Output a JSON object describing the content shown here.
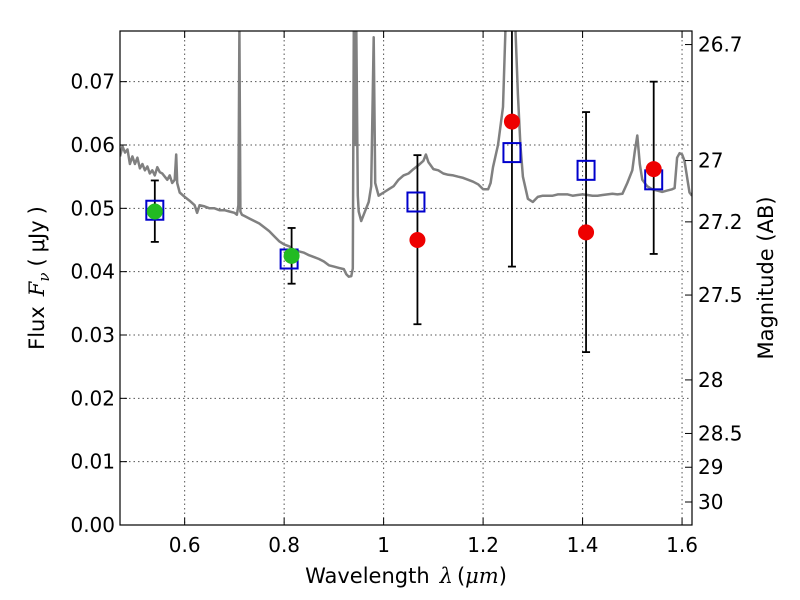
{
  "chart_data": {
    "type": "scatter",
    "title": "",
    "xlabel": "Wavelength",
    "xlabel_symbol": "λ",
    "xlabel_unit": "μm",
    "ylabel": "Flux",
    "ylabel_symbol": "F",
    "ylabel_symbol_sub": "ν",
    "ylabel_unit": "μJy",
    "y2label": "Magnitude (AB)",
    "xlim": [
      0.47,
      1.62
    ],
    "ylim": [
      0.0,
      0.078
    ],
    "grid": true,
    "x_ticks": [
      {
        "value": 0.6,
        "label": "0.6"
      },
      {
        "value": 0.8,
        "label": "0.8"
      },
      {
        "value": 1.0,
        "label": "1"
      },
      {
        "value": 1.2,
        "label": "1.2"
      },
      {
        "value": 1.4,
        "label": "1.4"
      },
      {
        "value": 1.6,
        "label": "1.6"
      }
    ],
    "y_ticks": [
      {
        "value": 0.0,
        "label": "0.00"
      },
      {
        "value": 0.01,
        "label": "0.01"
      },
      {
        "value": 0.02,
        "label": "0.02"
      },
      {
        "value": 0.03,
        "label": "0.03"
      },
      {
        "value": 0.04,
        "label": "0.04"
      },
      {
        "value": 0.05,
        "label": "0.05"
      },
      {
        "value": 0.06,
        "label": "0.06"
      },
      {
        "value": 0.07,
        "label": "0.07"
      }
    ],
    "y2_ticks": [
      {
        "mag": 26.7,
        "label": "26.7"
      },
      {
        "mag": 27.0,
        "label": "27"
      },
      {
        "mag": 27.2,
        "label": "27.2"
      },
      {
        "mag": 27.5,
        "label": "27.5"
      },
      {
        "mag": 28.0,
        "label": "28"
      },
      {
        "mag": 28.5,
        "label": "28.5"
      },
      {
        "mag": 29.0,
        "label": "29"
      },
      {
        "mag": 30.0,
        "label": "30"
      }
    ],
    "colors": {
      "model": "#808080",
      "model_flux": "#0000cc",
      "optical": "#22bb22",
      "nir": "#ee0000",
      "errorbar": "#000000",
      "grid": "#555555"
    },
    "model_spectrum": [
      [
        0.47,
        0.0582
      ],
      [
        0.475,
        0.0598
      ],
      [
        0.48,
        0.0588
      ],
      [
        0.485,
        0.0593
      ],
      [
        0.49,
        0.057
      ],
      [
        0.495,
        0.0582
      ],
      [
        0.5,
        0.057
      ],
      [
        0.505,
        0.058
      ],
      [
        0.51,
        0.0563
      ],
      [
        0.515,
        0.057
      ],
      [
        0.52,
        0.056
      ],
      [
        0.525,
        0.0566
      ],
      [
        0.53,
        0.0555
      ],
      [
        0.535,
        0.056
      ],
      [
        0.54,
        0.0552
      ],
      [
        0.545,
        0.0565
      ],
      [
        0.55,
        0.0557
      ],
      [
        0.555,
        0.0555
      ],
      [
        0.56,
        0.055
      ],
      [
        0.565,
        0.0545
      ],
      [
        0.57,
        0.0552
      ],
      [
        0.575,
        0.054
      ],
      [
        0.58,
        0.0545
      ],
      [
        0.583,
        0.0585
      ],
      [
        0.585,
        0.054
      ],
      [
        0.59,
        0.0525
      ],
      [
        0.6,
        0.0518
      ],
      [
        0.61,
        0.0512
      ],
      [
        0.62,
        0.0505
      ],
      [
        0.625,
        0.0493
      ],
      [
        0.63,
        0.0505
      ],
      [
        0.64,
        0.0503
      ],
      [
        0.65,
        0.05
      ],
      [
        0.66,
        0.05
      ],
      [
        0.67,
        0.0497
      ],
      [
        0.68,
        0.0497
      ],
      [
        0.69,
        0.0495
      ],
      [
        0.7,
        0.0493
      ],
      [
        0.705,
        0.049
      ],
      [
        0.708,
        0.0505
      ],
      [
        0.71,
        0.0785
      ],
      [
        0.712,
        0.0495
      ],
      [
        0.715,
        0.049
      ],
      [
        0.72,
        0.0488
      ],
      [
        0.73,
        0.0484
      ],
      [
        0.74,
        0.048
      ],
      [
        0.75,
        0.0476
      ],
      [
        0.76,
        0.047
      ],
      [
        0.77,
        0.0464
      ],
      [
        0.78,
        0.0456
      ],
      [
        0.79,
        0.0448
      ],
      [
        0.8,
        0.0443
      ],
      [
        0.81,
        0.044
      ],
      [
        0.82,
        0.0434
      ],
      [
        0.83,
        0.0432
      ],
      [
        0.84,
        0.043
      ],
      [
        0.85,
        0.0426
      ],
      [
        0.86,
        0.0423
      ],
      [
        0.87,
        0.042
      ],
      [
        0.88,
        0.0416
      ],
      [
        0.89,
        0.041
      ],
      [
        0.9,
        0.0408
      ],
      [
        0.91,
        0.0406
      ],
      [
        0.92,
        0.0404
      ],
      [
        0.925,
        0.0396
      ],
      [
        0.93,
        0.0392
      ],
      [
        0.935,
        0.0393
      ],
      [
        0.938,
        0.0405
      ],
      [
        0.94,
        0.0785
      ],
      [
        0.943,
        0.06
      ],
      [
        0.945,
        0.0785
      ],
      [
        0.948,
        0.052
      ],
      [
        0.95,
        0.0495
      ],
      [
        0.955,
        0.048
      ],
      [
        0.96,
        0.049
      ],
      [
        0.965,
        0.05
      ],
      [
        0.97,
        0.051
      ],
      [
        0.975,
        0.0535
      ],
      [
        0.98,
        0.077
      ],
      [
        0.983,
        0.054
      ],
      [
        0.99,
        0.052
      ],
      [
        1.0,
        0.0525
      ],
      [
        1.01,
        0.053
      ],
      [
        1.02,
        0.0535
      ],
      [
        1.03,
        0.0545
      ],
      [
        1.04,
        0.0552
      ],
      [
        1.05,
        0.0555
      ],
      [
        1.06,
        0.0562
      ],
      [
        1.07,
        0.0568
      ],
      [
        1.08,
        0.0575
      ],
      [
        1.085,
        0.0585
      ],
      [
        1.09,
        0.0573
      ],
      [
        1.1,
        0.0562
      ],
      [
        1.11,
        0.056
      ],
      [
        1.12,
        0.0555
      ],
      [
        1.13,
        0.0553
      ],
      [
        1.14,
        0.0552
      ],
      [
        1.15,
        0.055
      ],
      [
        1.16,
        0.0548
      ],
      [
        1.17,
        0.0545
      ],
      [
        1.18,
        0.0542
      ],
      [
        1.19,
        0.0538
      ],
      [
        1.2,
        0.053
      ],
      [
        1.21,
        0.053
      ],
      [
        1.215,
        0.054
      ],
      [
        1.22,
        0.0565
      ],
      [
        1.23,
        0.06
      ],
      [
        1.24,
        0.066
      ],
      [
        1.245,
        0.0785
      ],
      [
        1.26,
        0.0785
      ],
      [
        1.265,
        0.0785
      ],
      [
        1.27,
        0.068
      ],
      [
        1.275,
        0.06
      ],
      [
        1.28,
        0.055
      ],
      [
        1.29,
        0.0515
      ],
      [
        1.3,
        0.051
      ],
      [
        1.31,
        0.0518
      ],
      [
        1.32,
        0.052
      ],
      [
        1.33,
        0.052
      ],
      [
        1.34,
        0.052
      ],
      [
        1.35,
        0.0522
      ],
      [
        1.36,
        0.0522
      ],
      [
        1.37,
        0.0522
      ],
      [
        1.38,
        0.052
      ],
      [
        1.39,
        0.0521
      ],
      [
        1.4,
        0.0522
      ],
      [
        1.41,
        0.0521
      ],
      [
        1.42,
        0.052
      ],
      [
        1.43,
        0.052
      ],
      [
        1.44,
        0.0521
      ],
      [
        1.45,
        0.0522
      ],
      [
        1.46,
        0.0523
      ],
      [
        1.47,
        0.0522
      ],
      [
        1.48,
        0.0523
      ],
      [
        1.49,
        0.054
      ],
      [
        1.5,
        0.056
      ],
      [
        1.505,
        0.059
      ],
      [
        1.51,
        0.0615
      ],
      [
        1.515,
        0.057
      ],
      [
        1.52,
        0.0545
      ],
      [
        1.53,
        0.0535
      ],
      [
        1.54,
        0.053
      ],
      [
        1.55,
        0.0528
      ],
      [
        1.56,
        0.0526
      ],
      [
        1.57,
        0.0528
      ],
      [
        1.58,
        0.053
      ],
      [
        1.585,
        0.0532
      ],
      [
        1.59,
        0.058
      ],
      [
        1.595,
        0.0587
      ],
      [
        1.6,
        0.0585
      ],
      [
        1.605,
        0.0575
      ],
      [
        1.61,
        0.055
      ],
      [
        1.615,
        0.0525
      ],
      [
        1.62,
        0.052
      ]
    ],
    "model_flux_points": [
      {
        "x": 0.54,
        "y": 0.0497
      },
      {
        "x": 0.81,
        "y": 0.042
      },
      {
        "x": 1.065,
        "y": 0.051
      },
      {
        "x": 1.258,
        "y": 0.0588
      },
      {
        "x": 1.407,
        "y": 0.056
      },
      {
        "x": 1.543,
        "y": 0.0545
      }
    ],
    "observed_points": [
      {
        "x": 0.54,
        "y": 0.0495,
        "err_low": 0.0447,
        "err_high": 0.0544,
        "band": "optical"
      },
      {
        "x": 0.815,
        "y": 0.0425,
        "err_low": 0.0381,
        "err_high": 0.0469,
        "band": "optical"
      },
      {
        "x": 1.068,
        "y": 0.045,
        "err_low": 0.0317,
        "err_high": 0.0584,
        "band": "nir"
      },
      {
        "x": 1.258,
        "y": 0.0637,
        "err_low": 0.0408,
        "err_high": 0.0785,
        "band": "nir"
      },
      {
        "x": 1.407,
        "y": 0.0462,
        "err_low": 0.0273,
        "err_high": 0.0652,
        "band": "nir"
      },
      {
        "x": 1.543,
        "y": 0.0562,
        "err_low": 0.0428,
        "err_high": 0.07,
        "band": "nir"
      }
    ]
  }
}
